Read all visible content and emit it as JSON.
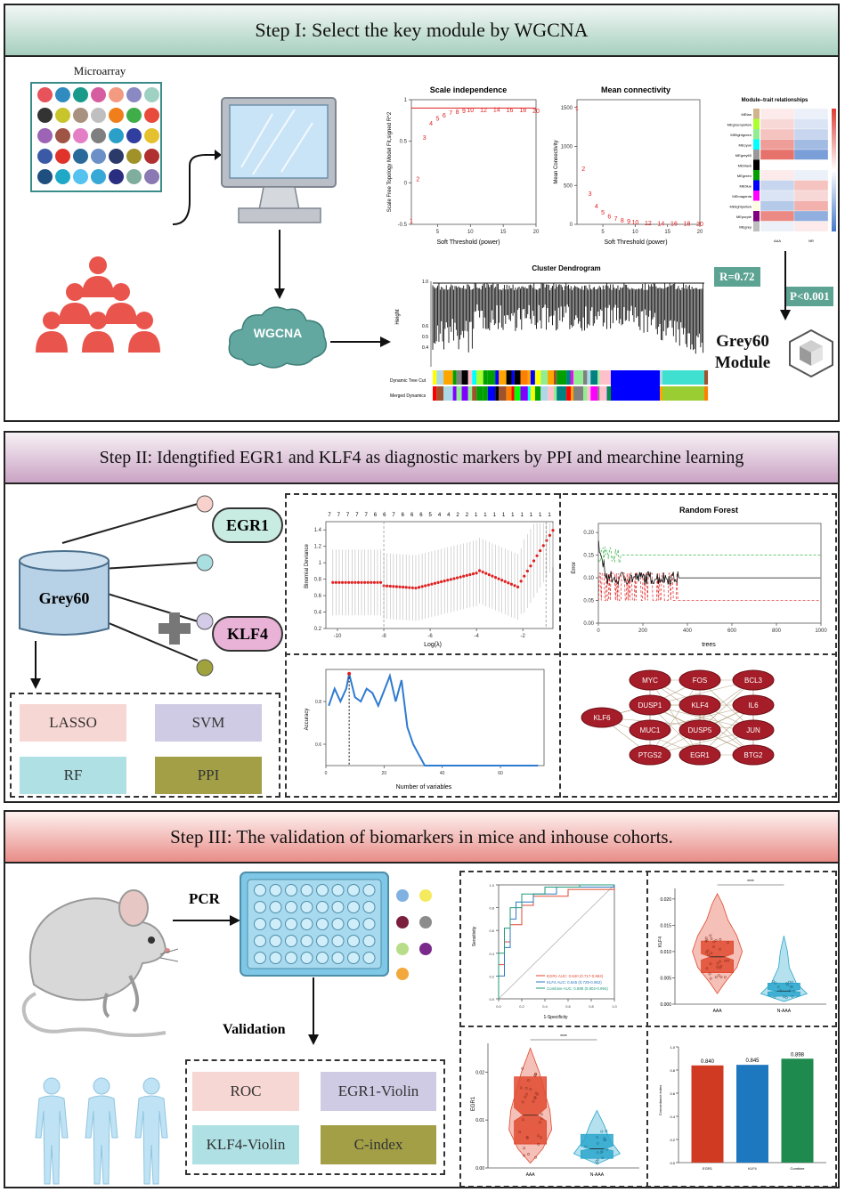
{
  "step1": {
    "title": "Step I: Select the key module by WGCNA",
    "microarray_label": "Microarray",
    "wgcna_label": "WGCNA",
    "r_label": "R=0.72",
    "p_label": "P<0.001",
    "module_line1": "Grey60",
    "module_line2": "Module",
    "colors": {
      "header_top": "#f2f7f5",
      "header_bottom": "#a6cfbf",
      "cloud": "#62a8a0",
      "badge": "#5da394",
      "people": "#e9554d"
    },
    "microarray_colors": [
      "#e8525a",
      "#2f8bc0",
      "#1a9a8a",
      "#d65da0",
      "#f29b80",
      "#8b89c4",
      "#9ed1c2",
      "#333333",
      "#c8c52c",
      "#a9917f",
      "#bfbfbf",
      "#f07e1b",
      "#3fae49",
      "#e84a3b",
      "#9d63b5",
      "#a05446",
      "#e47fc6",
      "#7f7f7f",
      "#2aa0c8",
      "#303ea0",
      "#e6c12f",
      "#3b5aa5",
      "#e0332b",
      "#2a6a9a",
      "#6b8fc7",
      "#2c3a6a",
      "#a09228",
      "#b03030",
      "#1f4f7f",
      "#20a8c8",
      "#55c2ef",
      "#38a8d6",
      "#2a2e80",
      "#7fad9e",
      "#8b79b4"
    ]
  },
  "charts1": {
    "scale": {
      "title": "Scale independence",
      "xlabel": "Soft Threshold (power)",
      "ylabel": "Scale Free Topology Model Fit,signed R^2"
    },
    "mean": {
      "title": "Mean connectivity",
      "xlabel": "Soft Threshold (power)",
      "ylabel": "Mean Connectivity"
    },
    "dendro": {
      "title": "Cluster Dendrogram",
      "ylabel": "Height",
      "row1": "Dynamic Tree Cut",
      "row2": "Merged Dynamics"
    },
    "heat": {
      "title": "Module–trait relationships",
      "xlabels": [
        "AAA",
        "NR"
      ],
      "modules": [
        "MEtan",
        "MEgreenyellow",
        "MElightgreen",
        "MEcyan",
        "MEgrey60",
        "MEblack",
        "MEgreen",
        "MEblue",
        "MEmagenta",
        "MElightyellow",
        "MEpurple",
        "MEgrey"
      ]
    }
  },
  "step2": {
    "title": "Step II: Idengtified EGR1 and KLF4 as diagnostic markers by PPI and mearchine learning",
    "hub": "Grey60",
    "plus": "+",
    "genes": [
      "EGR1",
      "KLF4"
    ],
    "methods": [
      "LASSO",
      "SVM",
      "RF",
      "PPI"
    ],
    "dot_colors": [
      "#f8d0cc",
      "#a9dfe1",
      "#d3cbe8",
      "#a0a23c"
    ],
    "method_colors": [
      "#f7d7d3",
      "#d0cbe4",
      "#aee0e4",
      "#a39f47"
    ],
    "colors": {
      "header_top": "#f7f1f5",
      "header_bottom": "#caa3c4",
      "hub": "#b7d1e6",
      "gene_pill": "#c9ece2",
      "gene_pill2": "#e8b3d6"
    }
  },
  "charts2": {
    "lasso": {
      "xlabel": "Log(λ)",
      "ylabel": "Binomial Deviance",
      "top_counts": [
        "7",
        "7",
        "7",
        "7",
        "7",
        "6",
        "6",
        "7",
        "6",
        "6",
        "6",
        "5",
        "4",
        "4",
        "2",
        "2",
        "1",
        "1",
        "1",
        "1",
        "1",
        "1",
        "1",
        "1",
        "1"
      ]
    },
    "rf": {
      "title": "Random Forest",
      "xlabel": "trees",
      "ylabel": "Error"
    },
    "svm": {
      "xlabel": "Number of variables",
      "ylabel": "Accuracy"
    },
    "ppi": {
      "nodes": [
        "MYC",
        "FOS",
        "BCL3",
        "DUSP1",
        "KLF4",
        "IL6",
        "KLF6",
        "MUC1",
        "DUSP5",
        "JUN",
        "PTGS2",
        "EGR1",
        "BTG2"
      ]
    }
  },
  "step3": {
    "title": "Step III: The validation of biomarkers in mice and inhouse cohorts.",
    "pcr": "PCR",
    "validation": "Validation",
    "methods": [
      "ROC",
      "EGR1-Violin",
      "KLF4-Violin",
      "C-index"
    ],
    "method_colors": [
      "#f7d7d3",
      "#d0cbe4",
      "#aee0e4",
      "#a39f47"
    ],
    "dot_colors": [
      "#7fb2e0",
      "#f4ea5e",
      "#7a1f3d",
      "#8c8c8c",
      "#b7dd8a",
      "#7a2a8a",
      "#f2a83a"
    ],
    "colors": {
      "header_top": "#fdf1ef",
      "header_bottom": "#e98d88",
      "plate": "#7fc7e6",
      "well": "#b8e2f4",
      "human": "#bfe3f5"
    }
  },
  "chart_data": [
    {
      "type": "scatter",
      "title": "Scale independence",
      "xlabel": "Soft Threshold (power)",
      "ylabel": "Scale Free Topology Model Fit,signed R^2",
      "x": [
        1,
        2,
        3,
        4,
        5,
        6,
        7,
        8,
        9,
        10,
        12,
        14,
        16,
        18,
        20
      ],
      "y": [
        -0.45,
        0.05,
        0.55,
        0.72,
        0.78,
        0.82,
        0.85,
        0.86,
        0.87,
        0.88,
        0.88,
        0.89,
        0.88,
        0.88,
        0.87
      ],
      "xlim": [
        1,
        20
      ],
      "ylim": [
        -0.5,
        1.0
      ],
      "hline": 0.9
    },
    {
      "type": "scatter",
      "title": "Mean connectivity",
      "xlabel": "Soft Threshold (power)",
      "ylabel": "Mean Connectivity",
      "x": [
        1,
        2,
        3,
        4,
        5,
        6,
        7,
        8,
        9,
        10,
        12,
        14,
        16,
        18,
        20
      ],
      "y": [
        1500,
        720,
        400,
        240,
        160,
        110,
        80,
        60,
        45,
        35,
        25,
        20,
        17,
        15,
        14
      ],
      "xlim": [
        1,
        20
      ],
      "ylim": [
        0,
        1600
      ]
    },
    {
      "type": "bar",
      "ylabel": "Concordance index",
      "categories": [
        "EGR1",
        "KLF4",
        "Combine"
      ],
      "values": [
        0.84,
        0.845,
        0.898
      ],
      "labels": [
        "0.840",
        "0.845",
        "0.898"
      ],
      "colors": [
        "#d03a22",
        "#1e78c0",
        "#1f8a4e"
      ],
      "ylim": [
        0,
        1
      ]
    },
    {
      "type": "line",
      "xlabel": "1-Specificity",
      "ylabel": "Sensitivity",
      "series": [
        {
          "name": "EGR1",
          "legend": "EGR1    AUC: 0.840 (0.717-0.963)",
          "color": "#e04a30"
        },
        {
          "name": "KLF4",
          "legend": "KLF4    AUC: 0.845 (0.729-0.962)",
          "color": "#2e79c0"
        },
        {
          "name": "Combine",
          "legend": "Combine AUC: 0.898 (0.802-0.994)",
          "color": "#1f9a7a"
        }
      ]
    },
    {
      "type": "violin",
      "ylabel": "KLF4",
      "categories": [
        "AAA",
        "N-AAA"
      ],
      "significance": "****",
      "colors": [
        "#e04a30",
        "#2aa6cc"
      ]
    },
    {
      "type": "violin",
      "ylabel": "EGR1",
      "categories": [
        "AAA",
        "N-AAA"
      ],
      "significance": "****",
      "colors": [
        "#e04a30",
        "#2aa6cc"
      ]
    }
  ]
}
